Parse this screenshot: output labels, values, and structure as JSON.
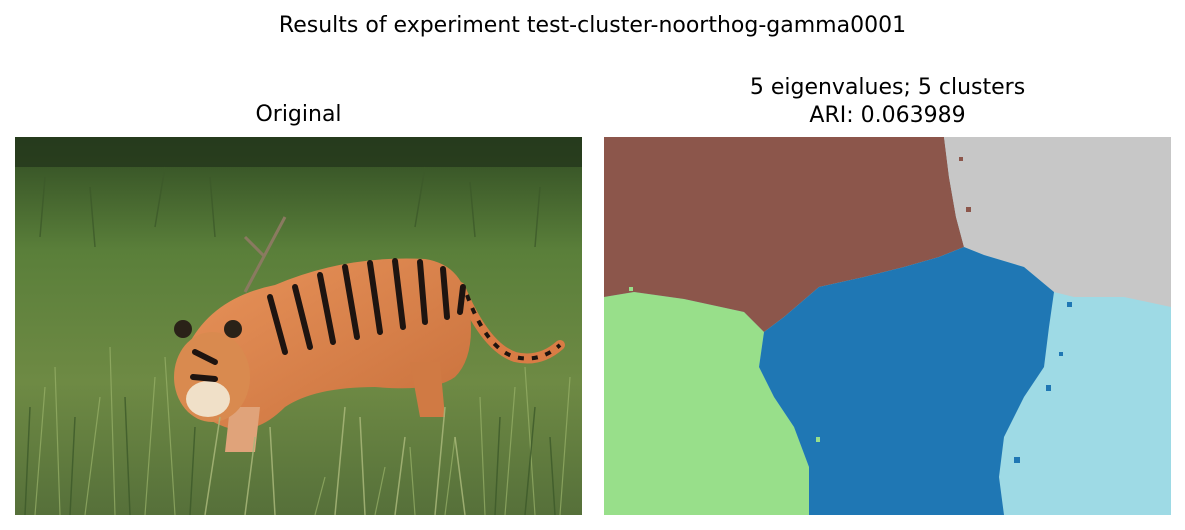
{
  "figure": {
    "title": "Results of experiment test-cluster-noorthog-gamma0001"
  },
  "original_panel": {
    "title": "Original",
    "image_description": "tiger walking through tall green grass"
  },
  "segmentation_panel": {
    "title_line1": "5 eigenvalues; 5 clusters",
    "title_line2": "ARI: 0.063989",
    "cluster_count": 5,
    "eigenvalue_count": 5,
    "ari": 0.063989,
    "cluster_colors": [
      "#8c564b",
      "#c7c7c7",
      "#1f77b4",
      "#98df8a",
      "#9edae5"
    ]
  }
}
